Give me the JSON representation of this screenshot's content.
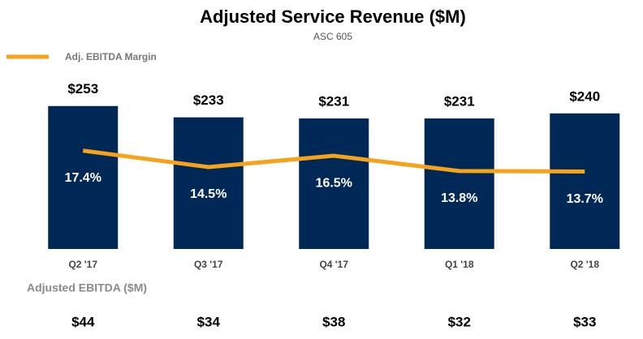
{
  "chart_data": {
    "type": "bar",
    "title": "Adjusted Service Revenue ($M)",
    "subtitle": "ASC 605",
    "categories": [
      "Q2 '17",
      "Q3 '17",
      "Q4 '17",
      "Q1 '18",
      "Q2 '18"
    ],
    "series": [
      {
        "type": "bar",
        "color": "#002856",
        "values": [
          253,
          233,
          231,
          231,
          240
        ],
        "value_labels": [
          "$253",
          "$233",
          "$231",
          "$231",
          "$240"
        ]
      },
      {
        "type": "line",
        "name": "Adj. EBITDA Margin",
        "axis": "y2",
        "color": "#f7a21b",
        "values": [
          17.4,
          14.5,
          16.5,
          13.8,
          13.7
        ],
        "value_labels": [
          "17.4%",
          "14.5%",
          "16.5%",
          "13.8%",
          "13.7%"
        ]
      }
    ],
    "ylim": [
      0,
      300
    ],
    "y2lim": [
      0,
      30
    ],
    "legend": "top-left",
    "table": {
      "label": "Adjusted EBITDA ($M)",
      "values": [
        44,
        34,
        38,
        32,
        33
      ],
      "value_labels": [
        "$44",
        "$34",
        "$38",
        "$32",
        "$33"
      ]
    }
  }
}
